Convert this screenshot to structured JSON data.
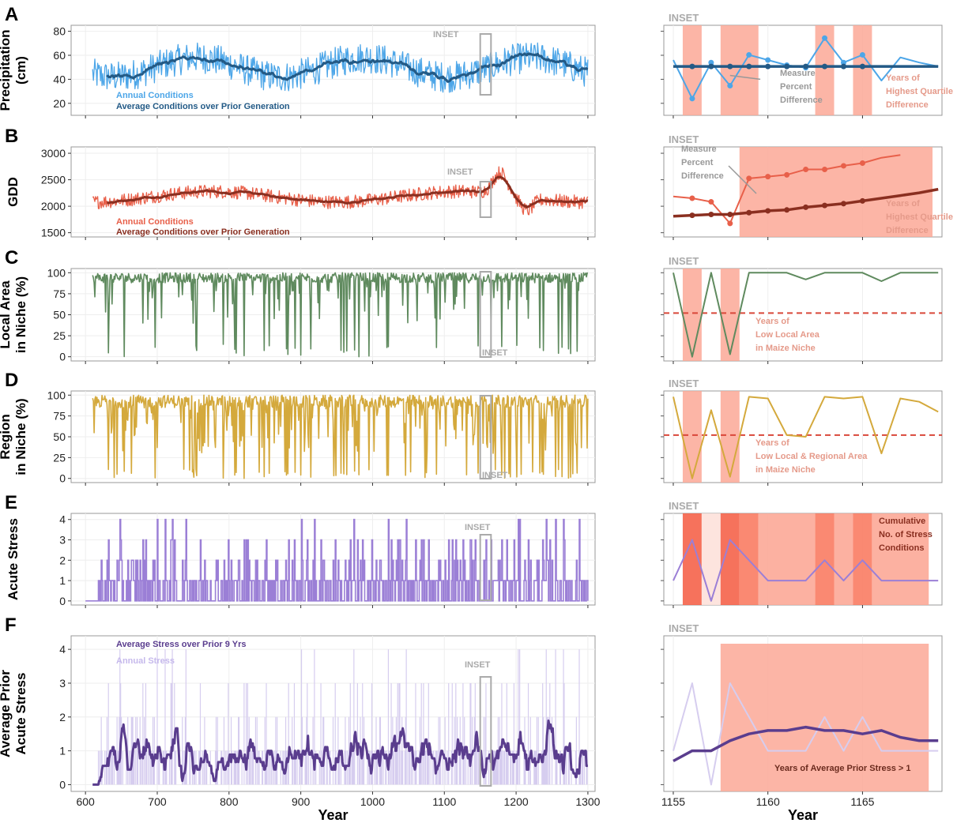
{
  "colors": {
    "precip_annual": "#4da6e8",
    "precip_avg": "#235a86",
    "gdd_annual": "#e8604a",
    "gdd_avg": "#8a2f20",
    "local": "#5f8a5e",
    "region": "#d4a93c",
    "stress": "#9b7fd6",
    "avgstress": "#5a3d8e",
    "annualstress_light": "#d6cdef",
    "highlight": "#fca897",
    "highlight_dark": "#f97c63",
    "highlight_darkest": "#f5634a",
    "dashed": "#d9473a",
    "inset_gray": "#aaaaaa"
  },
  "panels": {
    "A": {
      "letter": "A",
      "ylabel_lines": [
        "Precipitation",
        "(cm)"
      ]
    },
    "B": {
      "letter": "B",
      "ylabel_lines": [
        "GDD"
      ]
    },
    "C": {
      "letter": "C",
      "ylabel_lines": [
        "Local Area",
        "in Niche (%)"
      ]
    },
    "D": {
      "letter": "D",
      "ylabel_lines": [
        "Region",
        "in Niche (%)"
      ]
    },
    "E": {
      "letter": "E",
      "ylabel_lines": [
        "Acute Stress"
      ]
    },
    "F": {
      "letter": "F",
      "ylabel_lines": [
        "Average Prior",
        "Acute Stress"
      ]
    }
  },
  "legend": {
    "A_annual": "Annual Conditions",
    "A_avg": "Average Conditions over Prior Generation",
    "B_annual": "Annual Conditions",
    "B_avg": "Average Conditions over Prior Generation",
    "F_avg": "Average Stress over Prior 9 Yrs",
    "F_annual": "Annual Stress"
  },
  "inset_label": "INSET",
  "annotations": {
    "A_measure": [
      "Measure",
      "Percent",
      "Difference"
    ],
    "A_quartile": [
      "Years of",
      "Highest Quartile",
      "Difference"
    ],
    "B_measure": [
      "Measure",
      "Percent",
      "Difference"
    ],
    "B_quartile": [
      "Years of",
      "Highest Quartile",
      "Difference"
    ],
    "C_low": [
      "Years of",
      "Low Local Area",
      "in Maize Niche"
    ],
    "D_low": [
      "Years of",
      "Low Local & Regional Area",
      "in Maize Niche"
    ],
    "E_cum": [
      "Cumulative",
      "No. of Stress",
      "Conditions"
    ],
    "F_years": "Years of Average Prior Stress > 1"
  },
  "x_axis": {
    "title": "Year",
    "ticks": [
      600,
      700,
      800,
      900,
      1000,
      1100,
      1200,
      1300
    ],
    "range": [
      580,
      1310
    ]
  },
  "inset_x_axis": {
    "title": "Year",
    "ticks": [
      1155,
      1160,
      1165
    ],
    "range": [
      1154.5,
      1169.2
    ]
  },
  "chart_data": [
    {
      "type": "line",
      "panel": "A",
      "yticks": [
        20,
        40,
        60,
        80
      ],
      "ylim": [
        10,
        85
      ],
      "series": [
        {
          "name": "Annual Conditions",
          "mean": 50,
          "amp": 10
        },
        {
          "name": "Average Conditions over Prior Generation",
          "mean": 50,
          "amp": 5
        }
      ],
      "x_range": [
        610,
        1300
      ]
    },
    {
      "type": "line",
      "panel": "B",
      "yticks": [
        1500,
        2000,
        2500,
        3000
      ],
      "ylim": [
        1420,
        3120
      ],
      "series": [
        {
          "name": "Annual Conditions",
          "mean": 2150,
          "amp": 150
        },
        {
          "name": "Average Conditions over Prior Generation",
          "mean": 2150,
          "amp": 80
        }
      ],
      "x_range": [
        610,
        1300
      ]
    },
    {
      "type": "line",
      "panel": "C",
      "yticks": [
        0,
        25,
        50,
        75,
        100
      ],
      "ylim": [
        -5,
        105
      ],
      "x_range": [
        610,
        1300
      ]
    },
    {
      "type": "line",
      "panel": "D",
      "yticks": [
        0,
        25,
        50,
        75,
        100
      ],
      "ylim": [
        -5,
        105
      ],
      "x_range": [
        610,
        1300
      ]
    },
    {
      "type": "line",
      "panel": "E",
      "yticks": [
        0,
        1,
        2,
        3,
        4
      ],
      "ylim": [
        -0.2,
        4.3
      ],
      "x_range": [
        600,
        1300
      ]
    },
    {
      "type": "line",
      "panel": "F",
      "yticks": [
        0,
        1,
        2,
        3,
        4
      ],
      "ylim": [
        -0.2,
        4.4
      ],
      "x_range": [
        610,
        1300
      ]
    },
    {
      "type": "line",
      "panel": "A-inset",
      "years": [
        1155,
        1156,
        1157,
        1158,
        1159,
        1160,
        1161,
        1162,
        1163,
        1164,
        1165,
        1166,
        1167,
        1168,
        1169
      ],
      "annual": [
        58,
        28,
        56,
        38,
        62,
        58,
        54,
        52,
        75,
        56,
        62,
        42,
        60,
        56,
        53
      ],
      "avg": [
        53,
        53,
        53,
        53,
        53,
        53,
        53,
        53,
        53,
        53,
        53,
        53,
        53,
        53,
        53
      ],
      "ylim": [
        15,
        85
      ],
      "highlight_years": [
        [
          1155.5,
          1156.5
        ],
        [
          1157.5,
          1159.5
        ],
        [
          1162.5,
          1163.5
        ],
        [
          1164.5,
          1165.5
        ]
      ]
    },
    {
      "type": "line",
      "panel": "B-inset",
      "years": [
        1155,
        1156,
        1157,
        1158,
        1159,
        1160,
        1161,
        1162,
        1163,
        1164,
        1165,
        1166,
        1167,
        1168,
        1169
      ],
      "annual": [
        2400,
        2380,
        2340,
        2100,
        2600,
        2620,
        2640,
        2700,
        2700,
        2740,
        2770,
        2830,
        2860,
        null,
        null
      ],
      "avg": [
        2180,
        2190,
        2200,
        2200,
        2220,
        2240,
        2250,
        2280,
        2300,
        2320,
        2350,
        2380,
        2410,
        2440,
        2480
      ],
      "ylim": [
        1950,
        2950
      ],
      "highlight_years": [
        [
          1158.5,
          1168.7
        ]
      ]
    },
    {
      "type": "line",
      "panel": "C-inset",
      "years": [
        1155,
        1156,
        1157,
        1158,
        1159,
        1160,
        1161,
        1162,
        1163,
        1164,
        1165,
        1166,
        1167,
        1168,
        1169
      ],
      "values": [
        100,
        0,
        100,
        3,
        100,
        100,
        100,
        92,
        100,
        100,
        100,
        90,
        100,
        100,
        100
      ],
      "threshold": 52,
      "ylim": [
        -5,
        105
      ],
      "highlight_years": [
        [
          1155.5,
          1156.5
        ],
        [
          1157.5,
          1158.5
        ]
      ]
    },
    {
      "type": "line",
      "panel": "D-inset",
      "years": [
        1155,
        1156,
        1157,
        1158,
        1159,
        1160,
        1161,
        1162,
        1163,
        1164,
        1165,
        1166,
        1167,
        1168,
        1169
      ],
      "values": [
        98,
        0,
        82,
        2,
        98,
        96,
        52,
        50,
        98,
        96,
        98,
        30,
        96,
        92,
        80
      ],
      "threshold": 52,
      "ylim": [
        -5,
        105
      ],
      "highlight_years": [
        [
          1155.5,
          1156.5
        ],
        [
          1157.5,
          1158.5
        ]
      ]
    },
    {
      "type": "line",
      "panel": "E-inset",
      "years": [
        1155,
        1156,
        1157,
        1158,
        1159,
        1160,
        1161,
        1162,
        1163,
        1164,
        1165,
        1166,
        1167,
        1168,
        1169
      ],
      "values": [
        1,
        3,
        0,
        3,
        2,
        1,
        1,
        1,
        2,
        1,
        2,
        1,
        1,
        1,
        1
      ],
      "ylim": [
        -0.2,
        4.3
      ]
    },
    {
      "type": "line",
      "panel": "F-inset",
      "years": [
        1155,
        1156,
        1157,
        1158,
        1159,
        1160,
        1161,
        1162,
        1163,
        1164,
        1165,
        1166,
        1167,
        1168,
        1169
      ],
      "annual": [
        1,
        3,
        0,
        3,
        2,
        1,
        1,
        1,
        2,
        1,
        2,
        1,
        1,
        1,
        1
      ],
      "avg": [
        0.7,
        1.0,
        1.0,
        1.3,
        1.5,
        1.6,
        1.6,
        1.7,
        1.6,
        1.6,
        1.5,
        1.6,
        1.4,
        1.3,
        1.3
      ],
      "ylim": [
        -0.2,
        4.4
      ],
      "highlight_years": [
        [
          1157.5,
          1168.5
        ]
      ]
    }
  ]
}
